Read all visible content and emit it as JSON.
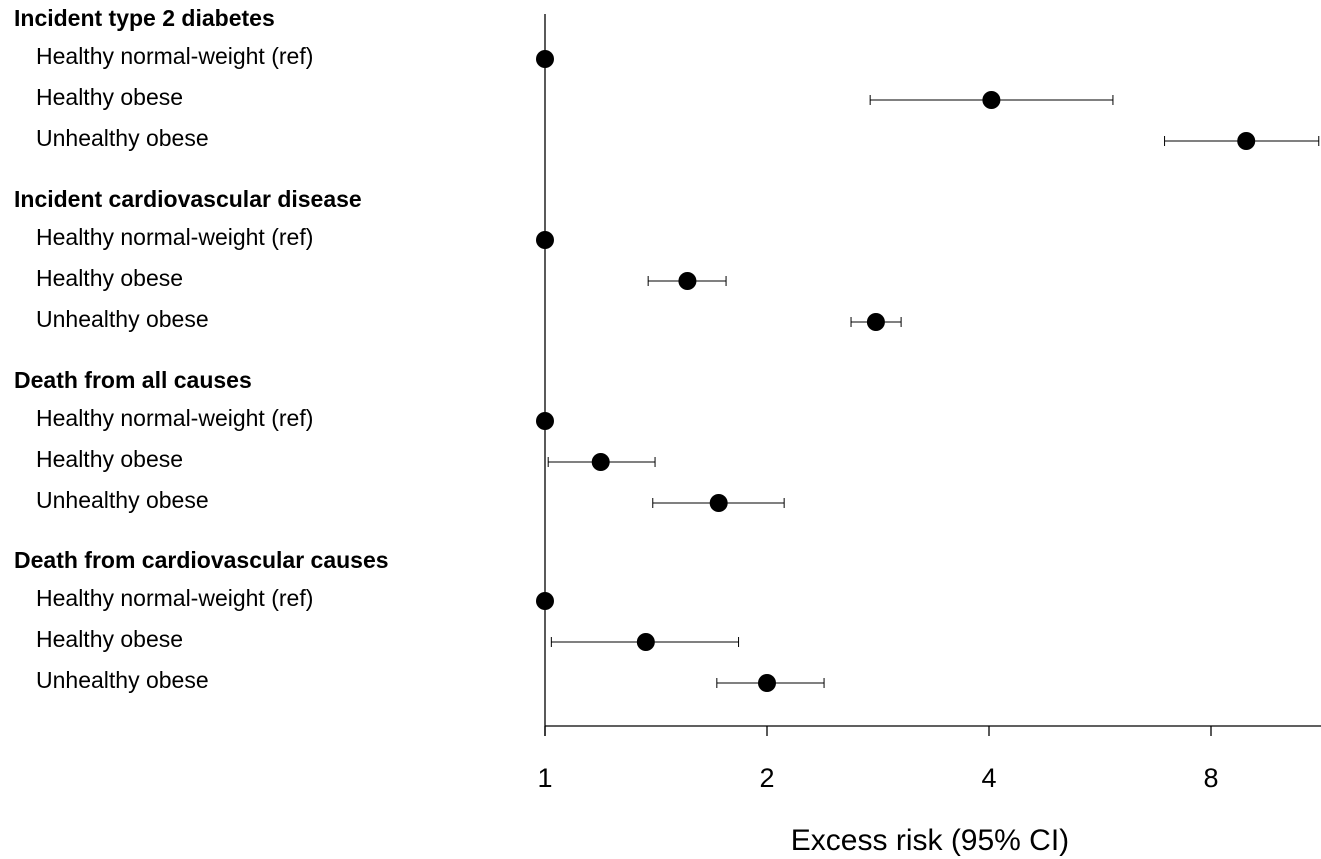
{
  "chart_data": {
    "type": "forest",
    "xlabel": "Excess risk (95% CI)",
    "x_scale": "log2",
    "xlim": [
      1,
      11.2
    ],
    "xticks": [
      1,
      2,
      4,
      8
    ],
    "xtick_labels": [
      "1",
      "2",
      "4",
      "8"
    ],
    "reference_value": 1,
    "groups": [
      {
        "title": "Incident type 2 diabetes",
        "rows": [
          {
            "label": "Healthy normal-weight (ref)",
            "estimate": 1.0,
            "ci": null
          },
          {
            "label": "Healthy obese",
            "estimate": 4.03,
            "ci": [
              2.76,
              5.89
            ]
          },
          {
            "label": "Unhealthy obese",
            "estimate": 8.93,
            "ci": [
              6.92,
              11.2
            ]
          }
        ]
      },
      {
        "title": "Incident cardiovascular disease",
        "rows": [
          {
            "label": "Healthy normal-weight (ref)",
            "estimate": 1.0,
            "ci": null
          },
          {
            "label": "Healthy obese",
            "estimate": 1.56,
            "ci": [
              1.38,
              1.76
            ]
          },
          {
            "label": "Unhealthy obese",
            "estimate": 2.81,
            "ci": [
              2.6,
              3.04
            ]
          }
        ]
      },
      {
        "title": "Death from all causes",
        "rows": [
          {
            "label": "Healthy normal-weight (ref)",
            "estimate": 1.0,
            "ci": null
          },
          {
            "label": "Healthy obese",
            "estimate": 1.19,
            "ci": [
              1.01,
              1.41
            ]
          },
          {
            "label": "Unhealthy obese",
            "estimate": 1.72,
            "ci": [
              1.4,
              2.11
            ]
          }
        ]
      },
      {
        "title": "Death from cardiovascular causes",
        "rows": [
          {
            "label": "Healthy normal-weight (ref)",
            "estimate": 1.0,
            "ci": null
          },
          {
            "label": "Healthy obese",
            "estimate": 1.37,
            "ci": [
              1.02,
              1.83
            ]
          },
          {
            "label": "Unhealthy obese",
            "estimate": 2.0,
            "ci": [
              1.71,
              2.39
            ]
          }
        ]
      }
    ]
  }
}
